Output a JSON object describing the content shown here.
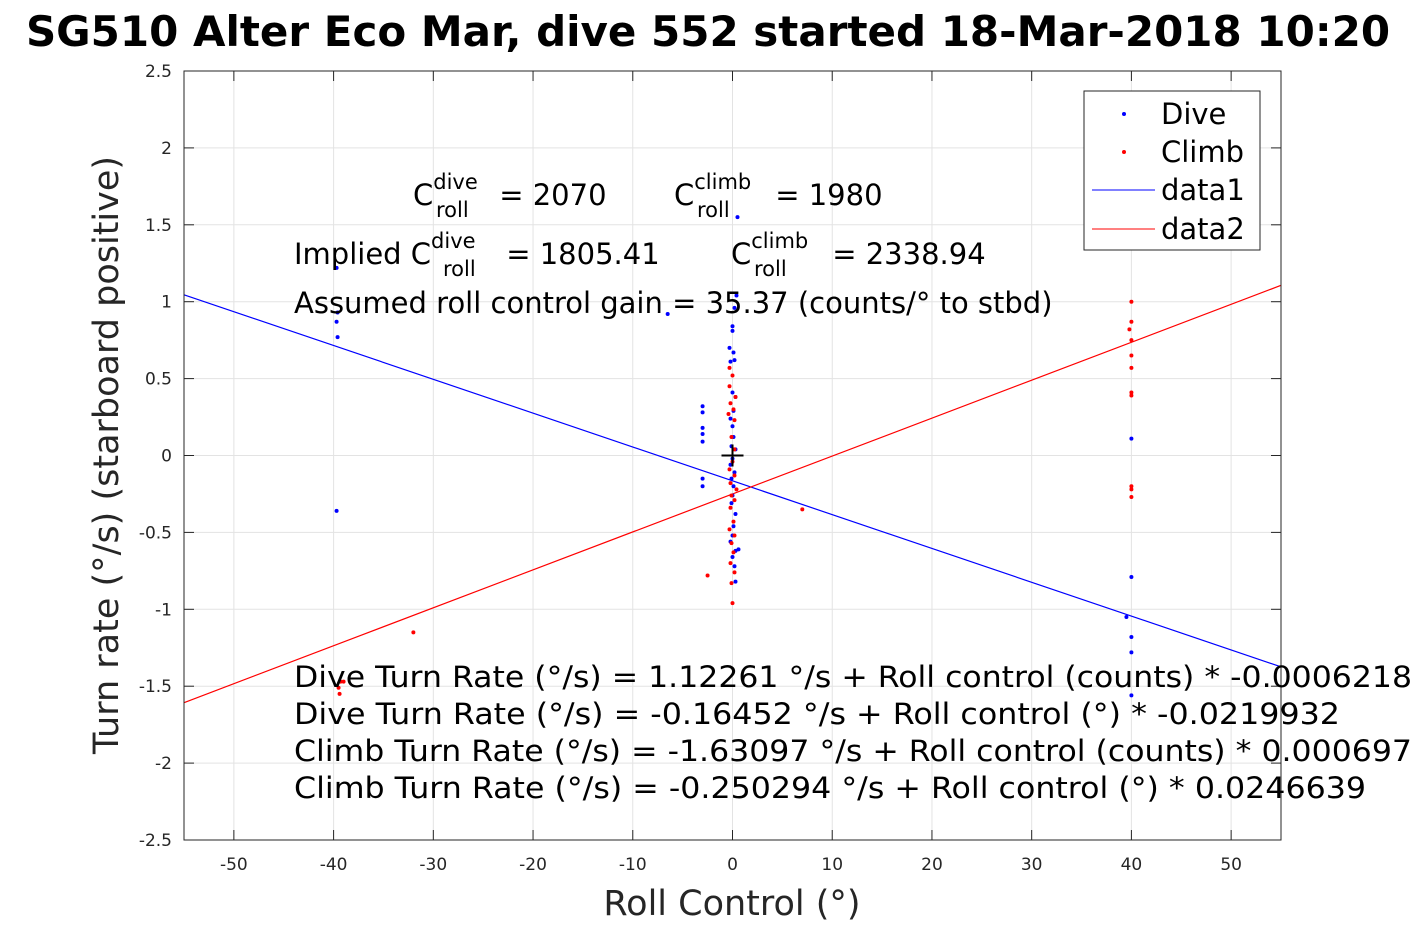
{
  "chart_data": {
    "type": "scatter",
    "title": "SG510 Alter Eco Mar, dive 552 started 18-Mar-2018 10:20",
    "xlabel": "Roll Control (°)",
    "ylabel": "Turn rate (°/s) (starboard positive)",
    "xlim": [
      -55,
      55
    ],
    "ylim": [
      -2.5,
      2.5
    ],
    "xticks": [
      -50,
      -40,
      -30,
      -20,
      -10,
      0,
      10,
      20,
      30,
      40,
      50
    ],
    "yticks": [
      -2.5,
      -2,
      -1.5,
      -1,
      -0.5,
      0,
      0.5,
      1,
      1.5,
      2,
      2.5
    ],
    "grid": true,
    "legend_position": "top-right",
    "legend": [
      "Dive",
      "Climb",
      "data1",
      "data2"
    ],
    "colors": {
      "dive": "#0000ff",
      "climb": "#ff0000"
    },
    "series": [
      {
        "name": "Dive",
        "style": "points",
        "color": "#0000ff",
        "points": [
          [
            -39.7,
            1.22
          ],
          [
            -39.6,
            0.93
          ],
          [
            -39.7,
            0.87
          ],
          [
            -39.6,
            0.77
          ],
          [
            -39.7,
            -0.36
          ],
          [
            -6.5,
            0.92
          ],
          [
            -3,
            0.32
          ],
          [
            -3,
            0.28
          ],
          [
            -3,
            0.18
          ],
          [
            -3,
            0.14
          ],
          [
            -3,
            0.09
          ],
          [
            -3,
            -0.15
          ],
          [
            -3,
            -0.2
          ],
          [
            0.5,
            1.55
          ],
          [
            0.4,
            1.04
          ],
          [
            0.2,
            0.96
          ],
          [
            0,
            0.84
          ],
          [
            0,
            0.81
          ],
          [
            -0.3,
            0.7
          ],
          [
            0.1,
            0.67
          ],
          [
            -0.2,
            0.61
          ],
          [
            0.2,
            0.62
          ],
          [
            0,
            0.41
          ],
          [
            0.3,
            0.38
          ],
          [
            0.1,
            0.29
          ],
          [
            -0.2,
            0.24
          ],
          [
            0,
            0.19
          ],
          [
            0.1,
            0.12
          ],
          [
            -0.1,
            0.06
          ],
          [
            0.3,
            0.04
          ],
          [
            0,
            -0.02
          ],
          [
            -0.2,
            -0.06
          ],
          [
            0.2,
            -0.11
          ],
          [
            -0.1,
            -0.15
          ],
          [
            0.1,
            -0.2
          ],
          [
            0,
            -0.26
          ],
          [
            -0.1,
            -0.31
          ],
          [
            0.3,
            -0.38
          ],
          [
            0.1,
            -0.46
          ],
          [
            0,
            -0.52
          ],
          [
            -0.2,
            -0.56
          ],
          [
            0.6,
            -0.61
          ],
          [
            0.3,
            -0.62
          ],
          [
            0,
            -0.66
          ],
          [
            0.2,
            -0.72
          ],
          [
            0.3,
            -0.82
          ],
          [
            40,
            0.11
          ],
          [
            40,
            -0.79
          ],
          [
            39.5,
            -1.05
          ],
          [
            40,
            -1.18
          ],
          [
            40,
            -1.28
          ],
          [
            40,
            -1.56
          ]
        ]
      },
      {
        "name": "Climb",
        "style": "points",
        "color": "#ff0000",
        "points": [
          [
            -39.3,
            -1.47
          ],
          [
            -39.5,
            -1.51
          ],
          [
            -39.4,
            -1.55
          ],
          [
            -39,
            -1.47
          ],
          [
            -32,
            -1.15
          ],
          [
            -2.5,
            -0.78
          ],
          [
            -0.3,
            0.57
          ],
          [
            0,
            0.52
          ],
          [
            -0.3,
            0.45
          ],
          [
            0.3,
            0.38
          ],
          [
            -0.2,
            0.34
          ],
          [
            0.1,
            0.3
          ],
          [
            -0.4,
            0.27
          ],
          [
            0.2,
            0.23
          ],
          [
            -0.1,
            0.12
          ],
          [
            0.2,
            0.04
          ],
          [
            0,
            -0.04
          ],
          [
            -0.3,
            -0.09
          ],
          [
            0.2,
            -0.13
          ],
          [
            -0.2,
            -0.18
          ],
          [
            0.4,
            -0.22
          ],
          [
            -0.1,
            -0.26
          ],
          [
            0.2,
            -0.29
          ],
          [
            -0.2,
            -0.34
          ],
          [
            0.1,
            -0.43
          ],
          [
            -0.3,
            -0.48
          ],
          [
            0.2,
            -0.52
          ],
          [
            -0.1,
            -0.57
          ],
          [
            0.1,
            -0.63
          ],
          [
            -0.2,
            -0.7
          ],
          [
            0.2,
            -0.76
          ],
          [
            -0.1,
            -0.83
          ],
          [
            0,
            -0.96
          ],
          [
            7,
            -0.35
          ],
          [
            40,
            1.0
          ],
          [
            40,
            0.87
          ],
          [
            39.8,
            0.82
          ],
          [
            40,
            0.75
          ],
          [
            40,
            0.65
          ],
          [
            40,
            0.57
          ],
          [
            40,
            0.41
          ],
          [
            40,
            0.39
          ],
          [
            40,
            -0.2
          ],
          [
            40,
            -0.22
          ],
          [
            40,
            -0.27
          ]
        ]
      },
      {
        "name": "data1",
        "style": "line",
        "color": "#0000ff",
        "intercept": -0.16452,
        "slope": -0.0219932
      },
      {
        "name": "data2",
        "style": "line",
        "color": "#ff0000",
        "intercept": -0.250294,
        "slope": 0.0246639
      }
    ],
    "marker": {
      "x": 0,
      "y": 0
    }
  },
  "annotations": {
    "c_dive": {
      "base": "C",
      "sup": "dive",
      "sub": "roll",
      "value": " = 2070"
    },
    "c_climb": {
      "base": "C",
      "sup": "climb",
      "sub": "roll",
      "value": " = 1980"
    },
    "implied_dive": {
      "prefix": "Implied C",
      "sup": "dive",
      "sub": "roll",
      "value": " = 1805.41"
    },
    "implied_climb": {
      "base": "C",
      "sup": "climb",
      "sub": "roll",
      "value": " = 2338.94"
    },
    "gain": "Assumed roll control gain = 35.37 (counts/° to stbd)",
    "eq1": "Dive Turn Rate (°/s) = 1.12261 °/s + Roll control (counts) * -0.0006218",
    "eq2": "Dive Turn Rate (°/s) = -0.16452 °/s + Roll control (°) * -0.0219932",
    "eq3": "Climb Turn Rate (°/s) = -1.63097 °/s + Roll control (counts) * 0.000697",
    "eq4": "Climb Turn Rate (°/s) = -0.250294 °/s + Roll control (°) * 0.0246639"
  }
}
